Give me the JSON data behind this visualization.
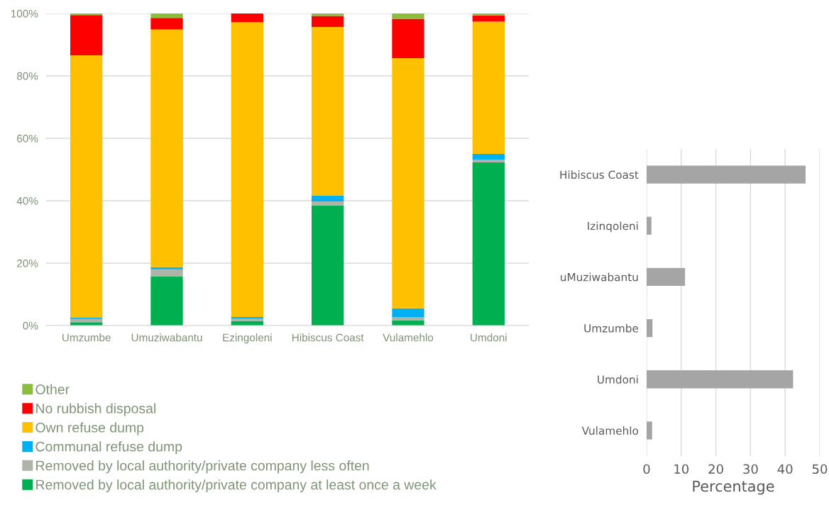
{
  "chart_data": [
    {
      "type": "bar",
      "stacked": true,
      "categories": [
        "Umzumbe",
        "Umuziwabantu",
        "Ezingoleni",
        "Hibiscus Coast",
        "Vulamehlo",
        "Umdoni"
      ],
      "series": [
        {
          "name": "Removed by local authority/private company at least once a week",
          "color": "#00b050",
          "values": [
            1.1,
            15.8,
            1.5,
            38.4,
            1.7,
            52.3
          ]
        },
        {
          "name": "Removed by local authority/private company less often",
          "color": "#aeb5a8",
          "values": [
            1.0,
            2.2,
            0.8,
            1.4,
            1.0,
            0.9
          ]
        },
        {
          "name": "Communal refuse dump",
          "color": "#00b0f0",
          "values": [
            0.4,
            0.7,
            0.4,
            1.8,
            2.8,
            1.8
          ]
        },
        {
          "name": "Own refuse dump",
          "color": "#ffc000",
          "values": [
            84.1,
            76.2,
            94.5,
            54.1,
            80.2,
            42.4
          ]
        },
        {
          "name": "No rubbish disposal",
          "color": "#ff0000",
          "values": [
            12.9,
            3.7,
            2.8,
            3.5,
            12.6,
            2.0
          ]
        },
        {
          "name": "Other",
          "color": "#8cbd3c",
          "values": [
            0.5,
            1.7,
            0.0,
            0.8,
            1.7,
            0.6
          ]
        }
      ],
      "ylim": [
        0,
        100
      ],
      "yticks": [
        {
          "value": 0,
          "label": "0%"
        },
        {
          "value": 20,
          "label": "20%"
        },
        {
          "value": 40,
          "label": "40%"
        },
        {
          "value": 60,
          "label": "60%"
        },
        {
          "value": 80,
          "label": "80%"
        },
        {
          "value": 100,
          "label": "100%"
        }
      ],
      "grid": "y",
      "legend": "bottom"
    },
    {
      "type": "bar",
      "orientation": "horizontal",
      "categories": [
        "Hibiscus Coast",
        "Izinqoleni",
        "uMuziwabantu",
        "Umzumbe",
        "Umdoni",
        "Vulamehlo"
      ],
      "values": [
        45.9,
        1.4,
        11.1,
        1.7,
        42.3,
        1.6
      ],
      "color": "#a5a5a5",
      "xlim": [
        0,
        50
      ],
      "xticks": [
        0,
        10,
        20,
        30,
        40,
        50
      ],
      "xlabel": "Percentage",
      "grid": "x"
    }
  ]
}
